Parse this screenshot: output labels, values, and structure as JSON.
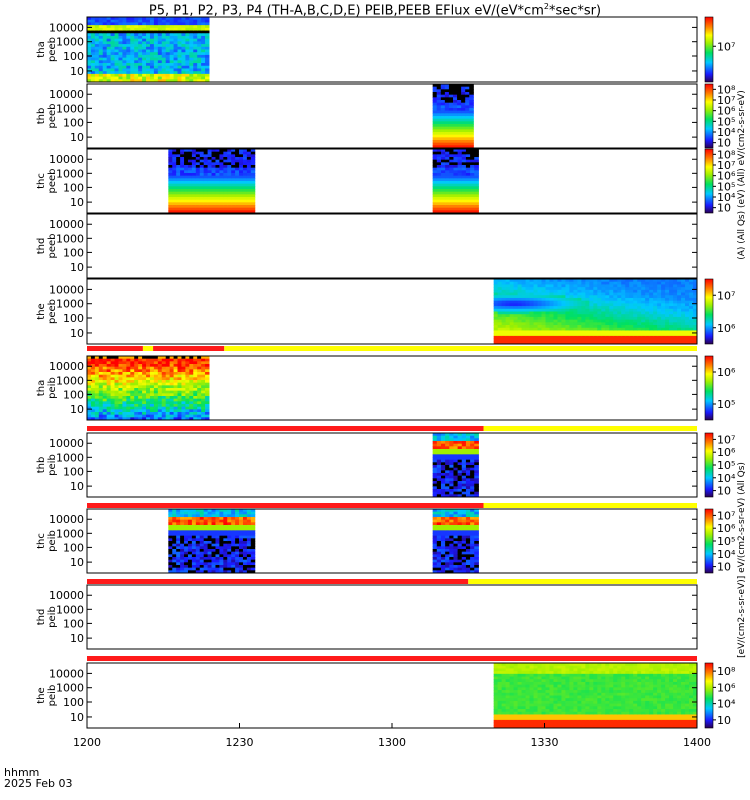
{
  "title_parts": {
    "main": "P5, P1, P2, P3, P4 (TH-A,B,C,D,E) PEIB,PEEB EFlux eV/(eV*cm",
    "sup": "2",
    "tail": "*sec*sr)"
  },
  "footer": {
    "time_label": "hhmm",
    "date_label": "2025 Feb 03"
  },
  "chart_data": {
    "type": "heatmap",
    "x": {
      "ticks": [
        "1200",
        "1230",
        "1300",
        "1330",
        "1400"
      ],
      "range_minutes": [
        0,
        120
      ]
    },
    "y_ticks": [
      "10000",
      "1000",
      "100",
      "10"
    ],
    "panels": [
      {
        "probe": "tha",
        "product": "peeb",
        "label1": "tha",
        "label2": "peeb",
        "colorbar_ticks": [
          "10⁷"
        ],
        "colorbar_unit": "(A) (All Qs) (eV) (All) eV/(cm2-s-sr-eV)",
        "coverage": [
          [
            0,
            24
          ]
        ],
        "pattern": "tha_peeb",
        "flag_bar": null
      },
      {
        "probe": "thb",
        "product": "peeb",
        "label1": "thb",
        "label2": "peeb",
        "colorbar_ticks": [
          "10⁸",
          "10⁷",
          "10⁶",
          "10⁵",
          "10⁴",
          "10⁳"
        ],
        "colorbar_unit": "",
        "coverage": [
          [
            68,
            76
          ]
        ],
        "pattern": "peeb_std",
        "flag_bar": null
      },
      {
        "probe": "thc",
        "product": "peeb",
        "label1": "thc",
        "label2": "peeb",
        "colorbar_ticks": [
          "10⁸",
          "10⁷",
          "10⁶",
          "10⁵",
          "10⁴",
          "10⁳"
        ],
        "colorbar_unit": "",
        "coverage": [
          [
            16,
            33
          ],
          [
            68,
            77
          ]
        ],
        "pattern": "peeb_std",
        "flag_bar": null
      },
      {
        "probe": "thd",
        "product": "peeb",
        "label1": "thd",
        "label2": "peeb",
        "colorbar_ticks": [],
        "colorbar_unit": "",
        "coverage": [],
        "pattern": "none",
        "flag_bar": null
      },
      {
        "probe": "the",
        "product": "peeb",
        "label1": "the",
        "label2": "peeb",
        "colorbar_ticks": [
          "10⁷",
          "10⁶"
        ],
        "colorbar_unit": "",
        "coverage": [
          [
            80,
            120
          ]
        ],
        "pattern": "the_peeb",
        "flag_bar": [
          [
            0,
            11,
            "red"
          ],
          [
            11,
            13,
            "yellow"
          ],
          [
            13,
            27,
            "red"
          ],
          [
            27,
            120,
            "yellow"
          ]
        ]
      },
      {
        "probe": "tha",
        "product": "peib",
        "label1": "tha",
        "label2": "peib",
        "colorbar_ticks": [
          "10⁶",
          "10⁵"
        ],
        "colorbar_unit": "",
        "coverage": [
          [
            0,
            24
          ]
        ],
        "pattern": "tha_peib",
        "flag_bar": [
          [
            0,
            78,
            "red"
          ],
          [
            78,
            120,
            "yellow"
          ]
        ]
      },
      {
        "probe": "thb",
        "product": "peib",
        "label1": "thb",
        "label2": "peib",
        "colorbar_ticks": [
          "10⁷",
          "10⁶",
          "10⁵",
          "10⁴",
          "10⁳"
        ],
        "colorbar_unit": "",
        "coverage": [
          [
            68,
            77
          ]
        ],
        "pattern": "peib_std",
        "flag_bar": [
          [
            0,
            78,
            "red"
          ],
          [
            78,
            120,
            "yellow"
          ]
        ]
      },
      {
        "probe": "thc",
        "product": "peib",
        "label1": "thc",
        "label2": "peib",
        "colorbar_ticks": [
          "10⁷",
          "10⁶",
          "10⁵",
          "10⁴",
          "10⁳"
        ],
        "colorbar_unit": "",
        "coverage": [
          [
            16,
            33
          ],
          [
            68,
            77
          ]
        ],
        "pattern": "peib_std",
        "flag_bar": [
          [
            0,
            75,
            "red"
          ],
          [
            75,
            120,
            "yellow"
          ]
        ]
      },
      {
        "probe": "thd",
        "product": "peib",
        "label1": "thd",
        "label2": "peib",
        "colorbar_ticks": [],
        "colorbar_unit": "",
        "coverage": [],
        "pattern": "none",
        "flag_bar": [
          [
            0,
            120,
            "red"
          ]
        ]
      },
      {
        "probe": "the",
        "product": "peib",
        "label1": "the",
        "label2": "peib",
        "colorbar_ticks": [
          "10⁸",
          "10⁶",
          "10⁴",
          "10⁲"
        ],
        "colorbar_unit": "[eV/(cm2-s-sr-eV)] eV/(cm2-s-sr-eV) (All Qs)",
        "coverage": [
          [
            80,
            120
          ]
        ],
        "pattern": "the_peib",
        "flag_bar": null
      }
    ],
    "colors": {
      "flag_red": "#ff1a1a",
      "flag_yellow": "#ffff00",
      "axis": "#000000"
    }
  }
}
